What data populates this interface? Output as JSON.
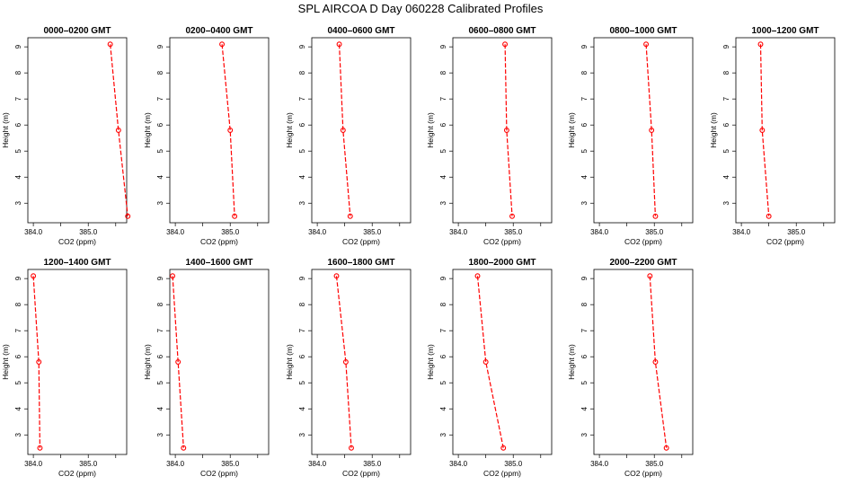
{
  "figure_title": "SPL AIRCOA D  Day 060228  Calibrated Profiles",
  "chart_data": [
    {
      "type": "line",
      "title": "0000–0200 GMT",
      "xlabel": "CO2 (ppm)",
      "ylabel": "Height (m)",
      "xlim": [
        383.9,
        385.7
      ],
      "ylim": [
        2.25,
        9.35
      ],
      "x_ticks": [
        "384.0",
        "385.0"
      ],
      "y_ticks": [
        "3",
        "4",
        "5",
        "6",
        "7",
        "8",
        "9"
      ],
      "grid": false,
      "color": "#ff0000",
      "series": [
        {
          "x": [
            385.4,
            385.55,
            385.72
          ],
          "y": [
            9.1,
            5.8,
            2.5
          ]
        }
      ]
    },
    {
      "type": "line",
      "title": "0200–0400 GMT",
      "xlabel": "CO2 (ppm)",
      "ylabel": "Height (m)",
      "xlim": [
        383.9,
        385.7
      ],
      "ylim": [
        2.25,
        9.35
      ],
      "x_ticks": [
        "384.0",
        "385.0"
      ],
      "y_ticks": [
        "3",
        "4",
        "5",
        "6",
        "7",
        "8",
        "9"
      ],
      "grid": false,
      "color": "#ff0000",
      "series": [
        {
          "x": [
            384.85,
            385.0,
            385.08
          ],
          "y": [
            9.1,
            5.8,
            2.5
          ]
        }
      ]
    },
    {
      "type": "line",
      "title": "0400–0600 GMT",
      "xlabel": "CO2 (ppm)",
      "ylabel": "Height (m)",
      "xlim": [
        383.9,
        385.7
      ],
      "ylim": [
        2.25,
        9.35
      ],
      "x_ticks": [
        "384.0",
        "385.0"
      ],
      "y_ticks": [
        "3",
        "4",
        "5",
        "6",
        "7",
        "8",
        "9"
      ],
      "grid": false,
      "color": "#ff0000",
      "series": [
        {
          "x": [
            384.4,
            384.47,
            384.6
          ],
          "y": [
            9.1,
            5.8,
            2.5
          ]
        }
      ]
    },
    {
      "type": "line",
      "title": "0600–0800 GMT",
      "xlabel": "CO2 (ppm)",
      "ylabel": "Height (m)",
      "xlim": [
        383.9,
        385.7
      ],
      "ylim": [
        2.25,
        9.35
      ],
      "x_ticks": [
        "384.0",
        "385.0"
      ],
      "y_ticks": [
        "3",
        "4",
        "5",
        "6",
        "7",
        "8",
        "9"
      ],
      "grid": false,
      "color": "#ff0000",
      "series": [
        {
          "x": [
            384.85,
            384.88,
            384.98
          ],
          "y": [
            9.1,
            5.8,
            2.5
          ]
        }
      ]
    },
    {
      "type": "line",
      "title": "0800–1000 GMT",
      "xlabel": "CO2 (ppm)",
      "ylabel": "Height (m)",
      "xlim": [
        383.9,
        385.7
      ],
      "ylim": [
        2.25,
        9.35
      ],
      "x_ticks": [
        "384.0",
        "385.0"
      ],
      "y_ticks": [
        "3",
        "4",
        "5",
        "6",
        "7",
        "8",
        "9"
      ],
      "grid": false,
      "color": "#ff0000",
      "series": [
        {
          "x": [
            384.85,
            384.95,
            385.02
          ],
          "y": [
            9.1,
            5.8,
            2.5
          ]
        }
      ]
    },
    {
      "type": "line",
      "title": "1000–1200 GMT",
      "xlabel": "CO2 (ppm)",
      "ylabel": "Height (m)",
      "xlim": [
        383.9,
        385.7
      ],
      "ylim": [
        2.25,
        9.35
      ],
      "x_ticks": [
        "384.0",
        "385.0"
      ],
      "y_ticks": [
        "3",
        "4",
        "5",
        "6",
        "7",
        "8",
        "9"
      ],
      "grid": false,
      "color": "#ff0000",
      "series": [
        {
          "x": [
            384.35,
            384.38,
            384.5
          ],
          "y": [
            9.1,
            5.8,
            2.5
          ]
        }
      ]
    },
    {
      "type": "line",
      "title": "1200–1400 GMT",
      "xlabel": "CO2 (ppm)",
      "ylabel": "Height (m)",
      "xlim": [
        383.9,
        385.7
      ],
      "ylim": [
        2.25,
        9.35
      ],
      "x_ticks": [
        "384.0",
        "385.0"
      ],
      "y_ticks": [
        "3",
        "4",
        "5",
        "6",
        "7",
        "8",
        "9"
      ],
      "grid": false,
      "color": "#ff0000",
      "series": [
        {
          "x": [
            384.0,
            384.1,
            384.12
          ],
          "y": [
            9.1,
            5.8,
            2.5
          ]
        }
      ]
    },
    {
      "type": "line",
      "title": "1400–1600 GMT",
      "xlabel": "CO2 (ppm)",
      "ylabel": "Height (m)",
      "xlim": [
        383.9,
        385.7
      ],
      "ylim": [
        2.25,
        9.35
      ],
      "x_ticks": [
        "384.0",
        "385.0"
      ],
      "y_ticks": [
        "3",
        "4",
        "5",
        "6",
        "7",
        "8",
        "9"
      ],
      "grid": false,
      "color": "#ff0000",
      "series": [
        {
          "x": [
            383.95,
            384.05,
            384.15
          ],
          "y": [
            9.1,
            5.8,
            2.5
          ]
        }
      ]
    },
    {
      "type": "line",
      "title": "1600–1800 GMT",
      "xlabel": "CO2 (ppm)",
      "ylabel": "Height (m)",
      "xlim": [
        383.9,
        385.7
      ],
      "ylim": [
        2.25,
        9.35
      ],
      "x_ticks": [
        "384.0",
        "385.0"
      ],
      "y_ticks": [
        "3",
        "4",
        "5",
        "6",
        "7",
        "8",
        "9"
      ],
      "grid": false,
      "color": "#ff0000",
      "series": [
        {
          "x": [
            384.35,
            384.52,
            384.62
          ],
          "y": [
            9.1,
            5.8,
            2.5
          ]
        }
      ]
    },
    {
      "type": "line",
      "title": "1800–2000 GMT",
      "xlabel": "CO2 (ppm)",
      "ylabel": "Height (m)",
      "xlim": [
        383.9,
        385.7
      ],
      "ylim": [
        2.25,
        9.35
      ],
      "x_ticks": [
        "384.0",
        "385.0"
      ],
      "y_ticks": [
        "3",
        "4",
        "5",
        "6",
        "7",
        "8",
        "9"
      ],
      "grid": false,
      "color": "#ff0000",
      "series": [
        {
          "x": [
            384.35,
            384.5,
            384.82
          ],
          "y": [
            9.1,
            5.8,
            2.5
          ]
        }
      ]
    },
    {
      "type": "line",
      "title": "2000–2200 GMT",
      "xlabel": "CO2 (ppm)",
      "ylabel": "Height (m)",
      "xlim": [
        383.9,
        385.7
      ],
      "ylim": [
        2.25,
        9.35
      ],
      "x_ticks": [
        "384.0",
        "385.0"
      ],
      "y_ticks": [
        "3",
        "4",
        "5",
        "6",
        "7",
        "8",
        "9"
      ],
      "grid": false,
      "color": "#ff0000",
      "series": [
        {
          "x": [
            384.92,
            385.02,
            385.22
          ],
          "y": [
            9.1,
            5.8,
            2.5
          ]
        }
      ]
    }
  ]
}
